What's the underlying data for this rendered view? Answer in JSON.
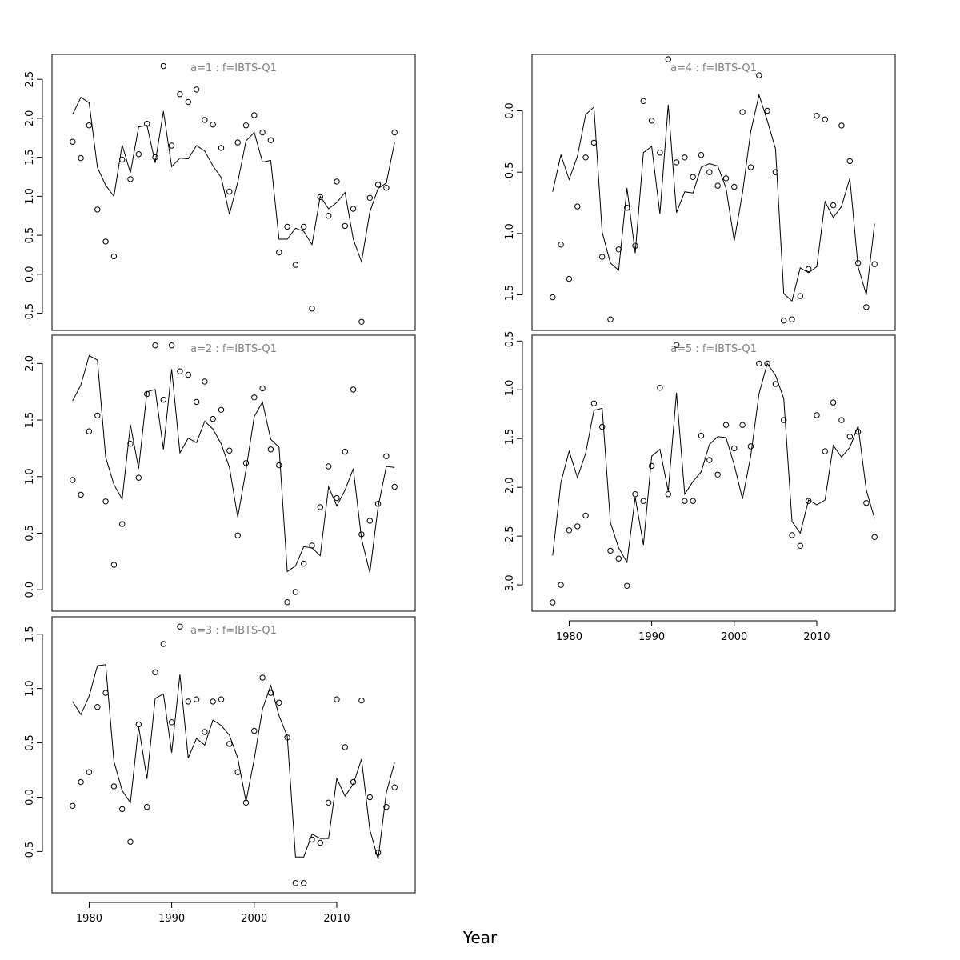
{
  "xlabel": "Year",
  "chart_data": [
    {
      "type": "line",
      "title": "a=1  :  f=IBTS-Q1",
      "xlim": [
        1975.5,
        2019.5
      ],
      "ylim": [
        -0.72,
        2.82
      ],
      "xticks": [
        1980,
        1990,
        2000,
        2010
      ],
      "yticks": [
        -0.5,
        0.0,
        0.5,
        1.0,
        1.5,
        2.0,
        2.5
      ],
      "ytick_labels": [
        "-0.5",
        "0.0",
        "0.5",
        "1.0",
        "1.5",
        "2.0",
        "2.5"
      ],
      "show_xticks": false,
      "x": [
        1978,
        1979,
        1980,
        1981,
        1982,
        1983,
        1984,
        1985,
        1986,
        1987,
        1988,
        1989,
        1990,
        1991,
        1992,
        1993,
        1994,
        1995,
        1996,
        1997,
        1998,
        1999,
        2000,
        2001,
        2002,
        2003,
        2004,
        2005,
        2006,
        2007,
        2008,
        2009,
        2010,
        2011,
        2012,
        2013,
        2014,
        2015,
        2016,
        2017
      ],
      "series": [
        {
          "style": "line",
          "values": [
            2.05,
            2.27,
            2.2,
            1.37,
            1.14,
            1.0,
            1.66,
            1.3,
            1.89,
            1.91,
            1.43,
            2.09,
            1.38,
            1.49,
            1.48,
            1.65,
            1.58,
            1.39,
            1.24,
            0.77,
            1.18,
            1.71,
            1.82,
            1.44,
            1.46,
            0.45,
            0.45,
            0.59,
            0.55,
            0.38,
            1.0,
            0.84,
            0.92,
            1.05,
            0.45,
            0.16,
            0.8,
            1.1,
            1.17,
            1.69
          ]
        },
        {
          "style": "points",
          "values": [
            1.7,
            1.49,
            1.91,
            0.83,
            0.42,
            0.23,
            1.47,
            1.22,
            1.54,
            1.93,
            1.5,
            2.67,
            1.65,
            2.31,
            2.21,
            2.37,
            1.98,
            1.92,
            1.62,
            1.06,
            1.69,
            1.91,
            2.04,
            1.82,
            1.72,
            0.28,
            0.61,
            0.12,
            0.61,
            -0.44,
            0.99,
            0.75,
            1.19,
            0.62,
            0.84,
            -0.61,
            0.98,
            1.15,
            1.11,
            1.82
          ]
        }
      ]
    },
    {
      "type": "line",
      "title": "a=2  :  f=IBTS-Q1",
      "xlim": [
        1975.5,
        2019.5
      ],
      "ylim": [
        -0.19,
        2.25
      ],
      "xticks": [
        1980,
        1990,
        2000,
        2010
      ],
      "yticks": [
        0.0,
        0.5,
        1.0,
        1.5,
        2.0
      ],
      "ytick_labels": [
        "0.0",
        "0.5",
        "1.0",
        "1.5",
        "2.0"
      ],
      "show_xticks": false,
      "x": [
        1978,
        1979,
        1980,
        1981,
        1982,
        1983,
        1984,
        1985,
        1986,
        1987,
        1988,
        1989,
        1990,
        1991,
        1992,
        1993,
        1994,
        1995,
        1996,
        1997,
        1998,
        1999,
        2000,
        2001,
        2002,
        2003,
        2004,
        2005,
        2006,
        2007,
        2008,
        2009,
        2010,
        2011,
        2012,
        2013,
        2014,
        2015,
        2016,
        2017
      ],
      "series": [
        {
          "style": "line",
          "values": [
            1.67,
            1.81,
            2.07,
            2.03,
            1.17,
            0.93,
            0.8,
            1.46,
            1.07,
            1.75,
            1.77,
            1.24,
            1.95,
            1.21,
            1.34,
            1.3,
            1.49,
            1.42,
            1.29,
            1.08,
            0.64,
            1.06,
            1.53,
            1.66,
            1.33,
            1.26,
            0.16,
            0.21,
            0.38,
            0.37,
            0.3,
            0.91,
            0.74,
            0.88,
            1.07,
            0.45,
            0.15,
            0.73,
            1.09,
            1.08
          ]
        },
        {
          "style": "points",
          "values": [
            0.97,
            0.84,
            1.4,
            1.54,
            0.78,
            0.22,
            0.58,
            1.29,
            0.99,
            1.73,
            2.16,
            1.68,
            2.16,
            1.93,
            1.9,
            1.66,
            1.84,
            1.51,
            1.59,
            1.23,
            0.48,
            1.12,
            1.7,
            1.78,
            1.24,
            1.1,
            -0.11,
            -0.02,
            0.23,
            0.39,
            0.73,
            1.09,
            0.81,
            1.22,
            1.77,
            0.49,
            0.61,
            0.76,
            1.18,
            0.91
          ]
        }
      ]
    },
    {
      "type": "line",
      "title": "a=3  :  f=IBTS-Q1",
      "xlim": [
        1975.5,
        2019.5
      ],
      "ylim": [
        -0.88,
        1.66
      ],
      "xticks": [
        1980,
        1990,
        2000,
        2010
      ],
      "yticks": [
        -0.5,
        0.0,
        0.5,
        1.0,
        1.5
      ],
      "ytick_labels": [
        "-0.5",
        "0.0",
        "0.5",
        "1.0",
        "1.5"
      ],
      "show_xticks": true,
      "x": [
        1978,
        1979,
        1980,
        1981,
        1982,
        1983,
        1984,
        1985,
        1986,
        1987,
        1988,
        1989,
        1990,
        1991,
        1992,
        1993,
        1994,
        1995,
        1996,
        1997,
        1998,
        1999,
        2000,
        2001,
        2002,
        2003,
        2004,
        2005,
        2006,
        2007,
        2008,
        2009,
        2010,
        2011,
        2012,
        2013,
        2014,
        2015,
        2016,
        2017
      ],
      "series": [
        {
          "style": "line",
          "values": [
            0.88,
            0.76,
            0.93,
            1.21,
            1.22,
            0.33,
            0.06,
            -0.05,
            0.65,
            0.17,
            0.91,
            0.95,
            0.41,
            1.13,
            0.36,
            0.54,
            0.48,
            0.71,
            0.66,
            0.57,
            0.36,
            -0.04,
            0.35,
            0.81,
            1.03,
            0.75,
            0.56,
            -0.55,
            -0.55,
            -0.34,
            -0.38,
            -0.38,
            0.17,
            0.01,
            0.12,
            0.35,
            -0.3,
            -0.57,
            0.04,
            0.32
          ]
        },
        {
          "style": "points",
          "values": [
            -0.08,
            0.14,
            0.23,
            0.83,
            0.96,
            0.1,
            -0.11,
            -0.41,
            0.67,
            -0.09,
            1.15,
            1.41,
            0.69,
            1.57,
            0.88,
            0.9,
            0.6,
            0.88,
            0.9,
            0.49,
            0.23,
            -0.05,
            0.61,
            1.1,
            0.96,
            0.87,
            0.55,
            -0.79,
            -0.79,
            -0.39,
            -0.42,
            -0.05,
            0.9,
            0.46,
            0.14,
            0.89,
            0.0,
            -0.51,
            -0.09,
            0.09
          ]
        }
      ]
    },
    {
      "type": "line",
      "title": "a=4  :  f=IBTS-Q1",
      "xlim": [
        1975.5,
        2019.5
      ],
      "ylim": [
        -1.79,
        0.46
      ],
      "xticks": [
        1980,
        1990,
        2000,
        2010
      ],
      "yticks": [
        -1.5,
        -1.0,
        -0.5,
        0.0
      ],
      "ytick_labels": [
        "-1.5",
        "-1.0",
        "-0.5",
        "0.0"
      ],
      "show_xticks": false,
      "x": [
        1978,
        1979,
        1980,
        1981,
        1982,
        1983,
        1984,
        1985,
        1986,
        1987,
        1988,
        1989,
        1990,
        1991,
        1992,
        1993,
        1994,
        1995,
        1996,
        1997,
        1998,
        1999,
        2000,
        2001,
        2002,
        2003,
        2004,
        2005,
        2006,
        2007,
        2008,
        2009,
        2010,
        2011,
        2012,
        2013,
        2014,
        2015,
        2016,
        2017
      ],
      "series": [
        {
          "style": "line",
          "values": [
            -0.66,
            -0.36,
            -0.56,
            -0.37,
            -0.03,
            0.03,
            -0.99,
            -1.24,
            -1.3,
            -0.63,
            -1.16,
            -0.34,
            -0.29,
            -0.84,
            0.05,
            -0.83,
            -0.66,
            -0.67,
            -0.46,
            -0.43,
            -0.45,
            -0.63,
            -1.06,
            -0.67,
            -0.17,
            0.13,
            -0.08,
            -0.31,
            -1.49,
            -1.55,
            -1.28,
            -1.32,
            -1.27,
            -0.74,
            -0.87,
            -0.78,
            -0.55,
            -1.27,
            -1.5,
            -0.92
          ]
        },
        {
          "style": "points",
          "values": [
            -1.52,
            -1.09,
            -1.37,
            -0.78,
            -0.38,
            -0.26,
            -1.19,
            -1.7,
            -1.13,
            -0.79,
            -1.1,
            0.08,
            -0.08,
            -0.34,
            0.42,
            -0.42,
            -0.38,
            -0.54,
            -0.36,
            -0.5,
            -0.61,
            -0.55,
            -0.62,
            -0.01,
            -0.46,
            0.29,
            0.0,
            -0.5,
            -1.71,
            -1.7,
            -1.51,
            -1.29,
            -0.04,
            -0.07,
            -0.77,
            -0.12,
            -0.41,
            -1.24,
            -1.6,
            -1.25
          ]
        }
      ]
    },
    {
      "type": "line",
      "title": "a=5  :  f=IBTS-Q1",
      "xlim": [
        1975.5,
        2019.5
      ],
      "ylim": [
        -3.27,
        -0.44
      ],
      "xticks": [
        1980,
        1990,
        2000,
        2010
      ],
      "yticks": [
        -3.0,
        -2.5,
        -2.0,
        -1.5,
        -1.0,
        -0.5
      ],
      "ytick_labels": [
        "-3.0",
        "-2.5",
        "-2.0",
        "-1.5",
        "-1.0",
        "-0.5"
      ],
      "show_xticks": true,
      "x": [
        1978,
        1979,
        1980,
        1981,
        1982,
        1983,
        1984,
        1985,
        1986,
        1987,
        1988,
        1989,
        1990,
        1991,
        1992,
        1993,
        1994,
        1995,
        1996,
        1997,
        1998,
        1999,
        2000,
        2001,
        2002,
        2003,
        2004,
        2005,
        2006,
        2007,
        2008,
        2009,
        2010,
        2011,
        2012,
        2013,
        2014,
        2015,
        2016,
        2017
      ],
      "series": [
        {
          "style": "line",
          "values": [
            -2.7,
            -1.95,
            -1.63,
            -1.9,
            -1.65,
            -1.21,
            -1.19,
            -2.36,
            -2.62,
            -2.77,
            -2.1,
            -2.59,
            -1.68,
            -1.61,
            -2.04,
            -1.03,
            -2.07,
            -1.94,
            -1.84,
            -1.56,
            -1.48,
            -1.49,
            -1.77,
            -2.12,
            -1.68,
            -1.04,
            -0.73,
            -0.85,
            -1.09,
            -2.35,
            -2.47,
            -2.13,
            -2.18,
            -2.13,
            -1.57,
            -1.69,
            -1.59,
            -1.37,
            -2.03,
            -2.32
          ]
        },
        {
          "style": "points",
          "values": [
            -3.18,
            -3.0,
            -2.44,
            -2.4,
            -2.29,
            -1.14,
            -1.38,
            -2.65,
            -2.73,
            -3.01,
            -2.07,
            -2.14,
            -1.78,
            -0.98,
            -2.07,
            -0.54,
            -2.14,
            -2.14,
            -1.47,
            -1.72,
            -1.87,
            -1.36,
            -1.6,
            -1.36,
            -1.58,
            -0.73,
            -0.73,
            -0.94,
            -1.31,
            -2.49,
            -2.6,
            -2.14,
            -1.26,
            -1.63,
            -1.13,
            -1.31,
            -1.48,
            -1.43,
            -2.16,
            -2.51
          ]
        }
      ]
    }
  ]
}
